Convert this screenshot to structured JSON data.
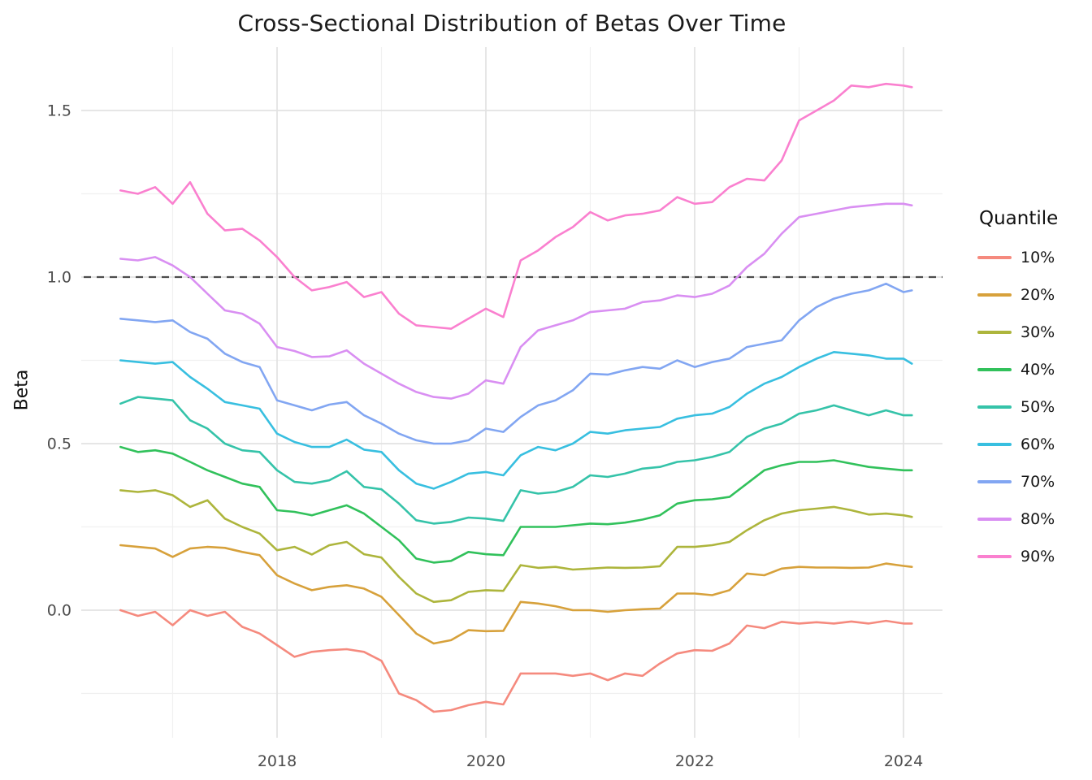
{
  "title": "Cross-Sectional Distribution of Betas Over Time",
  "legend": {
    "title": "Quantile"
  },
  "chart_data": {
    "type": "line",
    "title": "Cross-Sectional Distribution of Betas Over Time",
    "xlabel": "",
    "ylabel": "Beta",
    "xlim": [
      2016.12,
      2024.37
    ],
    "ylim": [
      -0.38,
      1.69
    ],
    "grid": "on",
    "legend_position": "right",
    "x_tick_labels": [
      "2018",
      "2020",
      "2022",
      "2024"
    ],
    "x_ticks": [
      2018,
      2020,
      2022,
      2024
    ],
    "x_minor_ticks": [
      2017,
      2019,
      2021,
      2023
    ],
    "y_tick_labels": [
      "0.0",
      "0.5",
      "1.0",
      "1.5"
    ],
    "y_ticks": [
      0.0,
      0.5,
      1.0,
      1.5
    ],
    "y_minor_ticks": [
      -0.25,
      0.25,
      0.75,
      1.25
    ],
    "reference_line": {
      "y": 1.0,
      "style": "dashed",
      "color": "#4d4d4d"
    },
    "x": [
      2016.5,
      2016.667,
      2016.833,
      2017.0,
      2017.167,
      2017.333,
      2017.5,
      2017.667,
      2017.833,
      2018.0,
      2018.167,
      2018.333,
      2018.5,
      2018.667,
      2018.833,
      2019.0,
      2019.167,
      2019.333,
      2019.5,
      2019.667,
      2019.833,
      2020.0,
      2020.167,
      2020.333,
      2020.5,
      2020.667,
      2020.833,
      2021.0,
      2021.167,
      2021.333,
      2021.5,
      2021.667,
      2021.833,
      2022.0,
      2022.167,
      2022.333,
      2022.5,
      2022.667,
      2022.833,
      2023.0,
      2023.167,
      2023.333,
      2023.5,
      2023.667,
      2023.833,
      2024.0,
      2024.08
    ],
    "series": [
      {
        "name": "10%",
        "color": "#f58a7e",
        "values": [
          0.0,
          -0.017,
          -0.005,
          -0.045,
          0.0,
          -0.017,
          -0.005,
          -0.05,
          -0.07,
          -0.105,
          -0.14,
          -0.125,
          -0.12,
          -0.117,
          -0.125,
          -0.152,
          -0.25,
          -0.27,
          -0.305,
          -0.3,
          -0.285,
          -0.275,
          -0.283,
          -0.19,
          -0.19,
          -0.19,
          -0.197,
          -0.19,
          -0.21,
          -0.19,
          -0.197,
          -0.16,
          -0.13,
          -0.12,
          -0.122,
          -0.1,
          -0.046,
          -0.054,
          -0.035,
          -0.04,
          -0.036,
          -0.04,
          -0.034,
          -0.04,
          -0.032,
          -0.04,
          -0.04
        ]
      },
      {
        "name": "20%",
        "color": "#d7a13b",
        "values": [
          0.195,
          0.19,
          0.185,
          0.16,
          0.185,
          0.19,
          0.187,
          0.175,
          0.165,
          0.105,
          0.08,
          0.06,
          0.07,
          0.075,
          0.065,
          0.04,
          -0.015,
          -0.07,
          -0.1,
          -0.09,
          -0.06,
          -0.063,
          -0.062,
          0.025,
          0.02,
          0.012,
          0.0,
          0.0,
          -0.005,
          0.0,
          0.003,
          0.005,
          0.05,
          0.05,
          0.045,
          0.06,
          0.11,
          0.105,
          0.125,
          0.13,
          0.128,
          0.128,
          0.127,
          0.128,
          0.14,
          0.133,
          0.13
        ]
      },
      {
        "name": "30%",
        "color": "#adb53c",
        "values": [
          0.36,
          0.355,
          0.36,
          0.345,
          0.31,
          0.33,
          0.275,
          0.25,
          0.23,
          0.18,
          0.19,
          0.167,
          0.195,
          0.205,
          0.168,
          0.158,
          0.1,
          0.05,
          0.025,
          0.03,
          0.055,
          0.06,
          0.058,
          0.135,
          0.127,
          0.13,
          0.122,
          0.125,
          0.128,
          0.127,
          0.128,
          0.132,
          0.19,
          0.19,
          0.195,
          0.205,
          0.24,
          0.27,
          0.29,
          0.3,
          0.305,
          0.31,
          0.3,
          0.287,
          0.29,
          0.285,
          0.28
        ]
      },
      {
        "name": "40%",
        "color": "#31c15b",
        "values": [
          0.49,
          0.475,
          0.48,
          0.47,
          0.445,
          0.42,
          0.4,
          0.38,
          0.37,
          0.3,
          0.295,
          0.285,
          0.3,
          0.315,
          0.29,
          0.25,
          0.21,
          0.155,
          0.143,
          0.148,
          0.175,
          0.168,
          0.165,
          0.25,
          0.25,
          0.25,
          0.255,
          0.26,
          0.258,
          0.263,
          0.272,
          0.285,
          0.32,
          0.33,
          0.333,
          0.34,
          0.38,
          0.42,
          0.435,
          0.445,
          0.445,
          0.45,
          0.44,
          0.43,
          0.425,
          0.42,
          0.42
        ]
      },
      {
        "name": "50%",
        "color": "#35c3a9",
        "values": [
          0.62,
          0.64,
          0.635,
          0.63,
          0.57,
          0.545,
          0.5,
          0.48,
          0.475,
          0.42,
          0.385,
          0.38,
          0.39,
          0.417,
          0.37,
          0.363,
          0.32,
          0.27,
          0.26,
          0.265,
          0.278,
          0.275,
          0.268,
          0.36,
          0.35,
          0.355,
          0.37,
          0.405,
          0.4,
          0.41,
          0.425,
          0.43,
          0.445,
          0.45,
          0.46,
          0.475,
          0.52,
          0.545,
          0.56,
          0.59,
          0.6,
          0.615,
          0.6,
          0.585,
          0.6,
          0.585,
          0.585
        ]
      },
      {
        "name": "60%",
        "color": "#38bfe0",
        "values": [
          0.75,
          0.745,
          0.74,
          0.745,
          0.7,
          0.665,
          0.625,
          0.615,
          0.605,
          0.53,
          0.505,
          0.49,
          0.49,
          0.512,
          0.482,
          0.475,
          0.42,
          0.38,
          0.365,
          0.385,
          0.41,
          0.415,
          0.405,
          0.465,
          0.49,
          0.48,
          0.5,
          0.535,
          0.53,
          0.54,
          0.545,
          0.55,
          0.575,
          0.585,
          0.59,
          0.61,
          0.65,
          0.68,
          0.7,
          0.73,
          0.755,
          0.775,
          0.77,
          0.765,
          0.755,
          0.755,
          0.74
        ]
      },
      {
        "name": "70%",
        "color": "#82a6f2",
        "values": [
          0.875,
          0.87,
          0.865,
          0.87,
          0.835,
          0.815,
          0.77,
          0.745,
          0.73,
          0.63,
          0.615,
          0.6,
          0.617,
          0.625,
          0.585,
          0.56,
          0.53,
          0.51,
          0.5,
          0.5,
          0.51,
          0.545,
          0.535,
          0.58,
          0.615,
          0.63,
          0.66,
          0.71,
          0.707,
          0.72,
          0.73,
          0.725,
          0.75,
          0.73,
          0.745,
          0.755,
          0.79,
          0.8,
          0.81,
          0.87,
          0.91,
          0.935,
          0.95,
          0.96,
          0.98,
          0.955,
          0.96
        ]
      },
      {
        "name": "80%",
        "color": "#d98ff2",
        "values": [
          1.055,
          1.05,
          1.06,
          1.035,
          1.0,
          0.95,
          0.9,
          0.89,
          0.86,
          0.79,
          0.778,
          0.76,
          0.762,
          0.78,
          0.74,
          0.71,
          0.68,
          0.655,
          0.64,
          0.635,
          0.65,
          0.69,
          0.68,
          0.79,
          0.84,
          0.855,
          0.87,
          0.895,
          0.9,
          0.905,
          0.925,
          0.93,
          0.945,
          0.94,
          0.95,
          0.975,
          1.03,
          1.07,
          1.13,
          1.18,
          1.19,
          1.2,
          1.21,
          1.215,
          1.22,
          1.22,
          1.215
        ]
      },
      {
        "name": "90%",
        "color": "#fa80cf",
        "values": [
          1.26,
          1.25,
          1.27,
          1.22,
          1.285,
          1.19,
          1.14,
          1.145,
          1.11,
          1.06,
          1.0,
          0.96,
          0.97,
          0.985,
          0.94,
          0.955,
          0.89,
          0.855,
          0.85,
          0.845,
          0.875,
          0.905,
          0.88,
          1.05,
          1.08,
          1.12,
          1.15,
          1.195,
          1.17,
          1.185,
          1.19,
          1.2,
          1.24,
          1.22,
          1.225,
          1.27,
          1.295,
          1.29,
          1.35,
          1.47,
          1.5,
          1.53,
          1.575,
          1.57,
          1.58,
          1.575,
          1.57
        ]
      }
    ]
  }
}
